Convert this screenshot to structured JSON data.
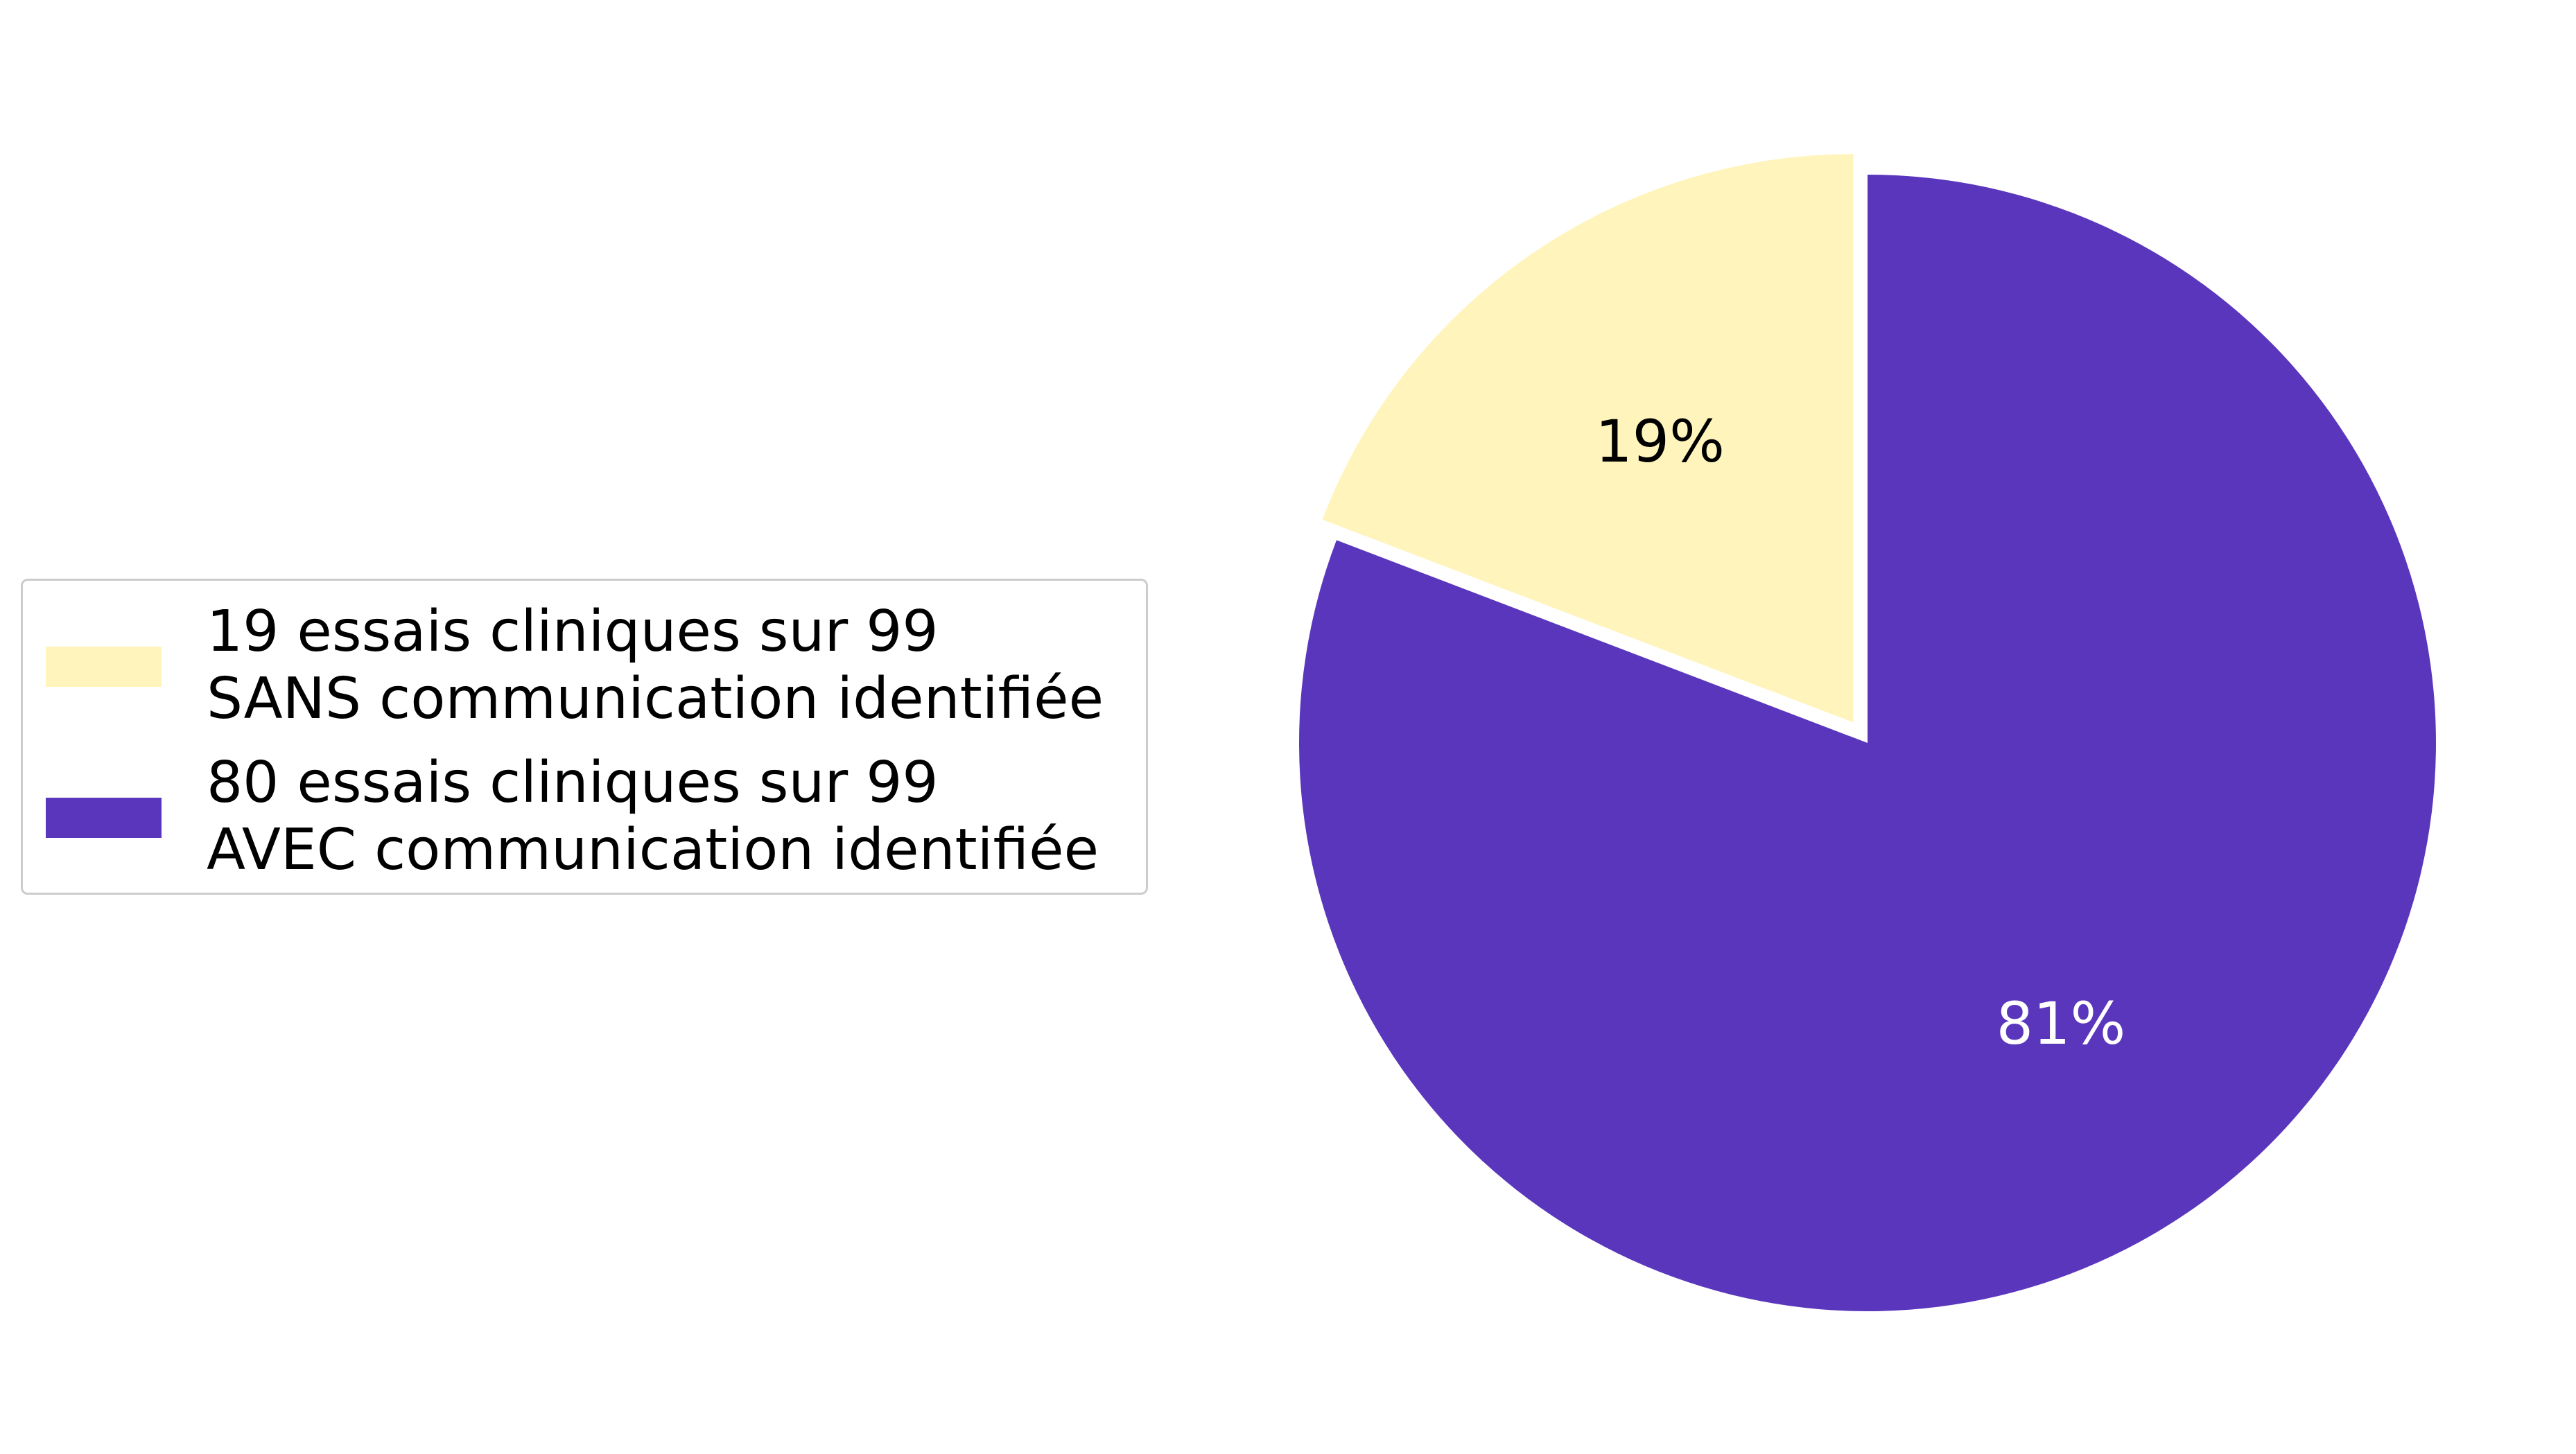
{
  "chart_data": {
    "type": "pie",
    "title": "",
    "slices": [
      {
        "label_lines": [
          "19 essais cliniques sur 99",
          "SANS communication identifiée"
        ],
        "value": 19,
        "percent_label": "19%",
        "color": "#fff4bb",
        "text_color": "#000000",
        "exploded": true
      },
      {
        "label_lines": [
          "80 essais cliniques sur 99",
          "AVEC communication identifiée"
        ],
        "value": 80,
        "percent_label": "81%",
        "color": "#5a36bd",
        "text_color": "#ffffff",
        "exploded": false
      }
    ],
    "start": "12 o'clock",
    "direction": "clockwise for the 80 slice, the 19 slice occupying the remaining counterclockwise wedge",
    "legend_position": "left"
  }
}
